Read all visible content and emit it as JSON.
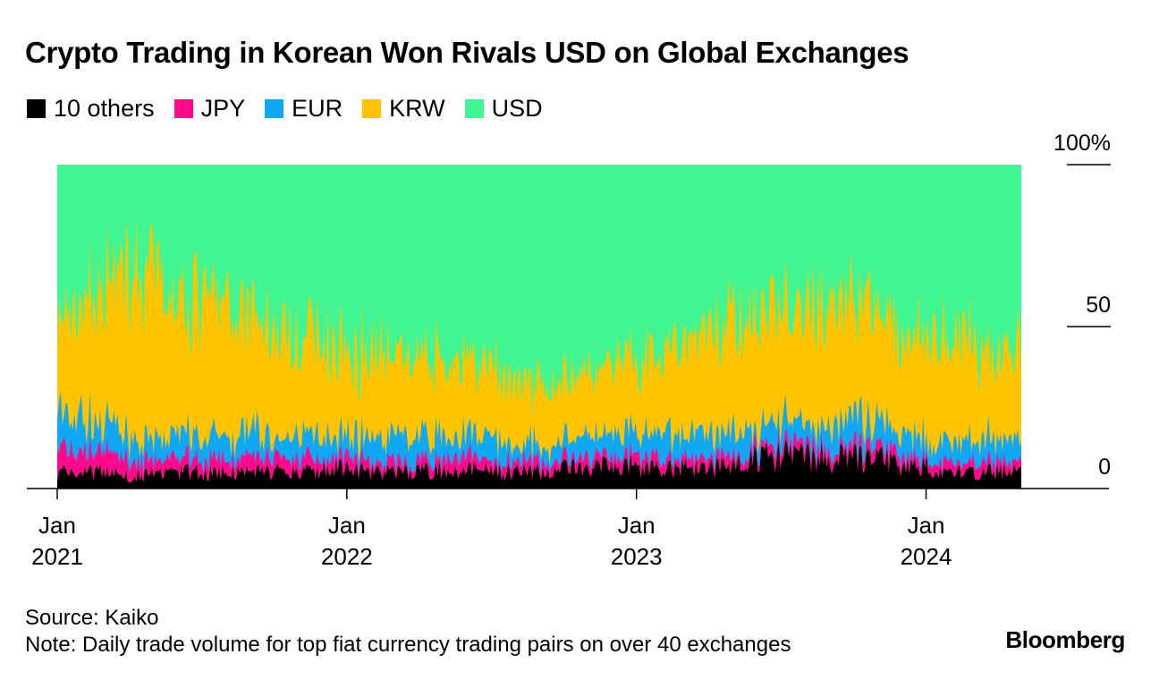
{
  "title": "Crypto Trading in Korean Won Rivals USD on Global Exchanges",
  "source": "Source: Kaiko",
  "note": "Note: Daily trade volume for top fiat currency trading pairs on over 40 exchanges",
  "brand": "Bloomberg",
  "legend": [
    {
      "label": "10 others",
      "color": "#000000"
    },
    {
      "label": "JPY",
      "color": "#ff0a8c"
    },
    {
      "label": "EUR",
      "color": "#10a8f5"
    },
    {
      "label": "KRW",
      "color": "#ffc300"
    },
    {
      "label": "USD",
      "color": "#40f592"
    }
  ],
  "chart_data": {
    "type": "area",
    "stacked": true,
    "stack_order_bottom_to_top": [
      "10 others",
      "JPY",
      "EUR",
      "KRW",
      "USD"
    ],
    "x_range": [
      "2021-01-01",
      "2024-04-30"
    ],
    "y_range": [
      0,
      100
    ],
    "y_unit": "%",
    "y_tick_labels": [
      {
        "value": 0,
        "label": "0"
      },
      {
        "value": 50,
        "label": "50"
      },
      {
        "value": 100,
        "label": "100%"
      }
    ],
    "x_tick_labels": [
      {
        "date": "2021-01-01",
        "month": "Jan",
        "year": "2021"
      },
      {
        "date": "2022-01-01",
        "month": "Jan",
        "year": "2022"
      },
      {
        "date": "2023-01-01",
        "month": "Jan",
        "year": "2023"
      },
      {
        "date": "2024-01-01",
        "month": "Jan",
        "year": "2024"
      }
    ],
    "grid": false,
    "legend_position": "top-left",
    "x": [
      "2021-01-01",
      "2021-02-01",
      "2021-03-01",
      "2021-04-01",
      "2021-05-01",
      "2021-06-01",
      "2021-07-01",
      "2021-08-01",
      "2021-09-01",
      "2021-10-01",
      "2021-11-01",
      "2021-12-01",
      "2022-01-01",
      "2022-02-01",
      "2022-03-01",
      "2022-04-01",
      "2022-05-01",
      "2022-06-01",
      "2022-07-01",
      "2022-08-01",
      "2022-09-01",
      "2022-10-01",
      "2022-11-01",
      "2022-12-01",
      "2023-01-01",
      "2023-02-01",
      "2023-03-01",
      "2023-04-01",
      "2023-05-01",
      "2023-06-01",
      "2023-07-01",
      "2023-08-01",
      "2023-09-01",
      "2023-10-01",
      "2023-11-01",
      "2023-12-01",
      "2024-01-01",
      "2024-02-01",
      "2024-03-01",
      "2024-04-01",
      "2024-04-30"
    ],
    "series": [
      {
        "name": "10 others",
        "values": [
          5,
          5,
          5,
          4,
          4,
          5,
          5,
          5,
          5,
          5,
          5,
          6,
          6,
          5,
          5,
          5,
          6,
          6,
          5,
          5,
          5,
          6,
          6,
          7,
          7,
          6,
          7,
          6,
          8,
          9,
          10,
          10,
          9,
          9,
          9,
          8,
          7,
          5,
          5,
          5,
          5
        ]
      },
      {
        "name": "JPY",
        "values": [
          7,
          6,
          6,
          5,
          4,
          4,
          4,
          4,
          4,
          4,
          4,
          4,
          4,
          3,
          3,
          3,
          4,
          4,
          3,
          3,
          3,
          3,
          3,
          3,
          3,
          3,
          3,
          3,
          3,
          3,
          3,
          3,
          3,
          3,
          3,
          3,
          3,
          3,
          3,
          3,
          3
        ]
      },
      {
        "name": "EUR",
        "values": [
          12,
          11,
          8,
          7,
          6,
          7,
          7,
          7,
          8,
          8,
          7,
          7,
          7,
          7,
          7,
          7,
          7,
          7,
          7,
          6,
          6,
          6,
          6,
          6,
          6,
          7,
          7,
          7,
          8,
          8,
          7,
          7,
          8,
          8,
          7,
          7,
          6,
          6,
          7,
          7,
          7
        ]
      },
      {
        "name": "KRW",
        "values": [
          27,
          32,
          45,
          53,
          50,
          44,
          42,
          40,
          38,
          33,
          33,
          29,
          27,
          27,
          27,
          25,
          22,
          21,
          22,
          20,
          19,
          19,
          21,
          22,
          22,
          26,
          28,
          31,
          34,
          33,
          35,
          37,
          38,
          37,
          34,
          32,
          33,
          32,
          30,
          28,
          27
        ]
      },
      {
        "name": "USD",
        "values": [
          49,
          46,
          36,
          31,
          36,
          40,
          42,
          44,
          45,
          50,
          51,
          54,
          56,
          58,
          58,
          60,
          61,
          62,
          63,
          66,
          67,
          66,
          64,
          62,
          62,
          58,
          55,
          53,
          47,
          47,
          45,
          43,
          42,
          43,
          47,
          50,
          51,
          54,
          55,
          57,
          58
        ]
      }
    ]
  }
}
